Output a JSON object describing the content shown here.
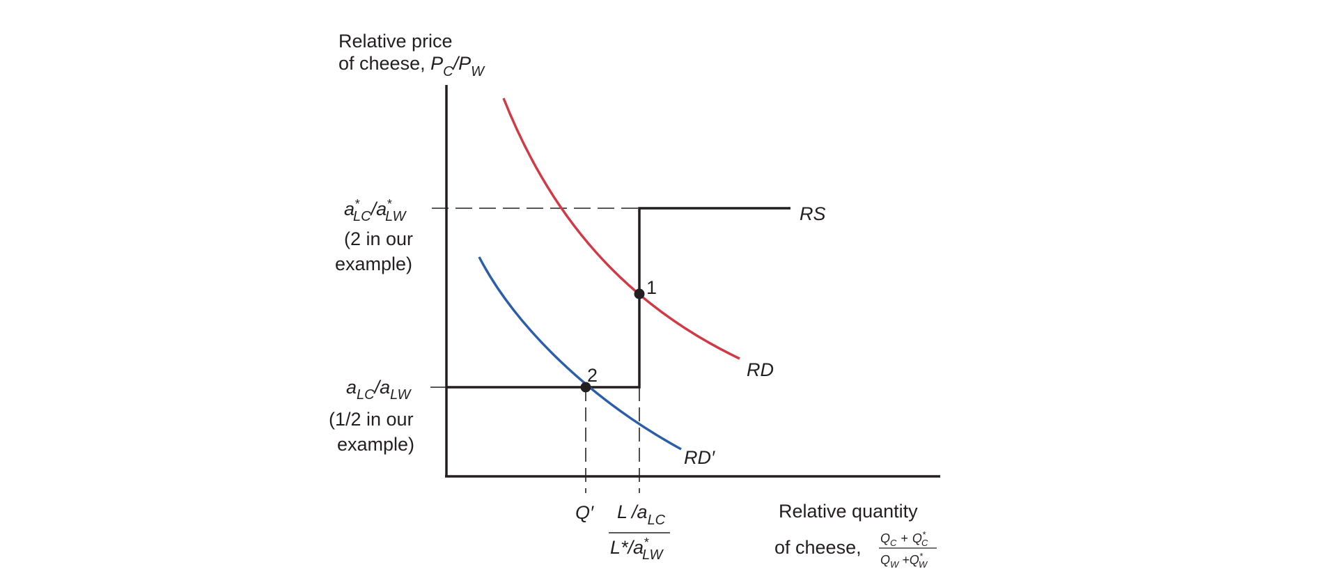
{
  "y_axis_title": {
    "line1": "Relative price",
    "line2_prefix": "of cheese, ",
    "P": "P",
    "C": "C",
    "slash": "/",
    "W": "W"
  },
  "x_axis_title": {
    "line1": "Relative quantity",
    "line2_prefix": "of cheese,",
    "num": "Q",
    "num_sub1": "C",
    "num_plus": "+",
    "num_star_sub": "C",
    "den": "Q",
    "den_sub1": "W",
    "den_plus": "+Q",
    "den_star_sub": "W"
  },
  "y_ticks": {
    "upper": {
      "a": "a",
      "star": "*",
      "sub1": "LC",
      "slash": "/a",
      "sub2": "LW",
      "note1": "(2 in our",
      "note2": "example)"
    },
    "lower": {
      "a": "a",
      "sub1": "LC",
      "slash": "/a",
      "sub2": "LW",
      "note1": "(1/2 in our",
      "note2": "example)"
    }
  },
  "x_ticks": {
    "q_prime": "Q′",
    "L": "L",
    "slash_a": "/a",
    "sub_lc": "LC",
    "Lstar": "L*",
    "sub_lw": "LW",
    "star": "*"
  },
  "curves": {
    "rs": "RS",
    "rd": "RD",
    "rd_prime": "RD′"
  },
  "points": {
    "p1": "1",
    "p2": "2"
  },
  "colors": {
    "axis": "#231f20",
    "rd": "#d13a45",
    "rd_prime": "#2a5ea8",
    "dash": "#231f20"
  }
}
